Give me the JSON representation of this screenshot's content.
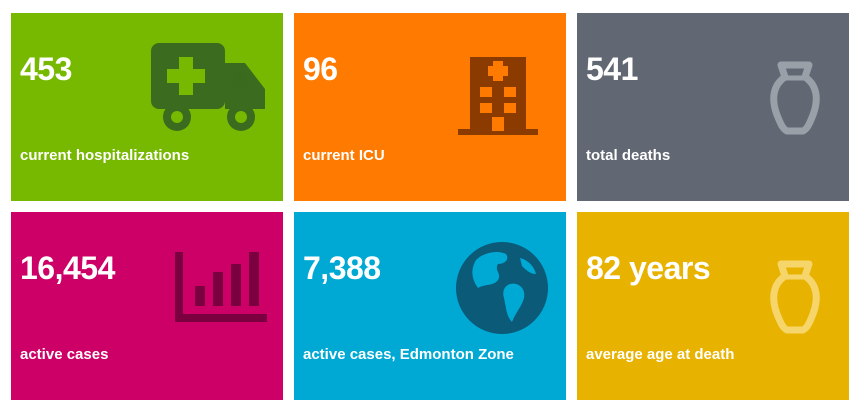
{
  "tiles": [
    {
      "value": "453",
      "label": "current hospitalizations",
      "color": "#77B800",
      "icon": "ambulance-icon",
      "icon_color": "#3A6B1E"
    },
    {
      "value": "96",
      "label": "current ICU",
      "color": "#FF7A00",
      "icon": "hospital-building-icon",
      "icon_color": "#8C3B00"
    },
    {
      "value": "541",
      "label": "total deaths",
      "color": "#616873",
      "icon": "urn-icon",
      "icon_color": "#9AA0A8"
    },
    {
      "value": "16,454",
      "label": "active cases",
      "color": "#CC0066",
      "icon": "bar-chart-icon",
      "icon_color": "#7A0040"
    },
    {
      "value": "7,388",
      "label": "active cases, Edmonton Zone",
      "color": "#00A9D4",
      "icon": "globe-icon",
      "icon_color": "#0A5A78"
    },
    {
      "value": "82 years",
      "label": "average age at death",
      "color": "#E8B200",
      "icon": "urn-icon",
      "icon_color": "#F6D56A"
    }
  ]
}
